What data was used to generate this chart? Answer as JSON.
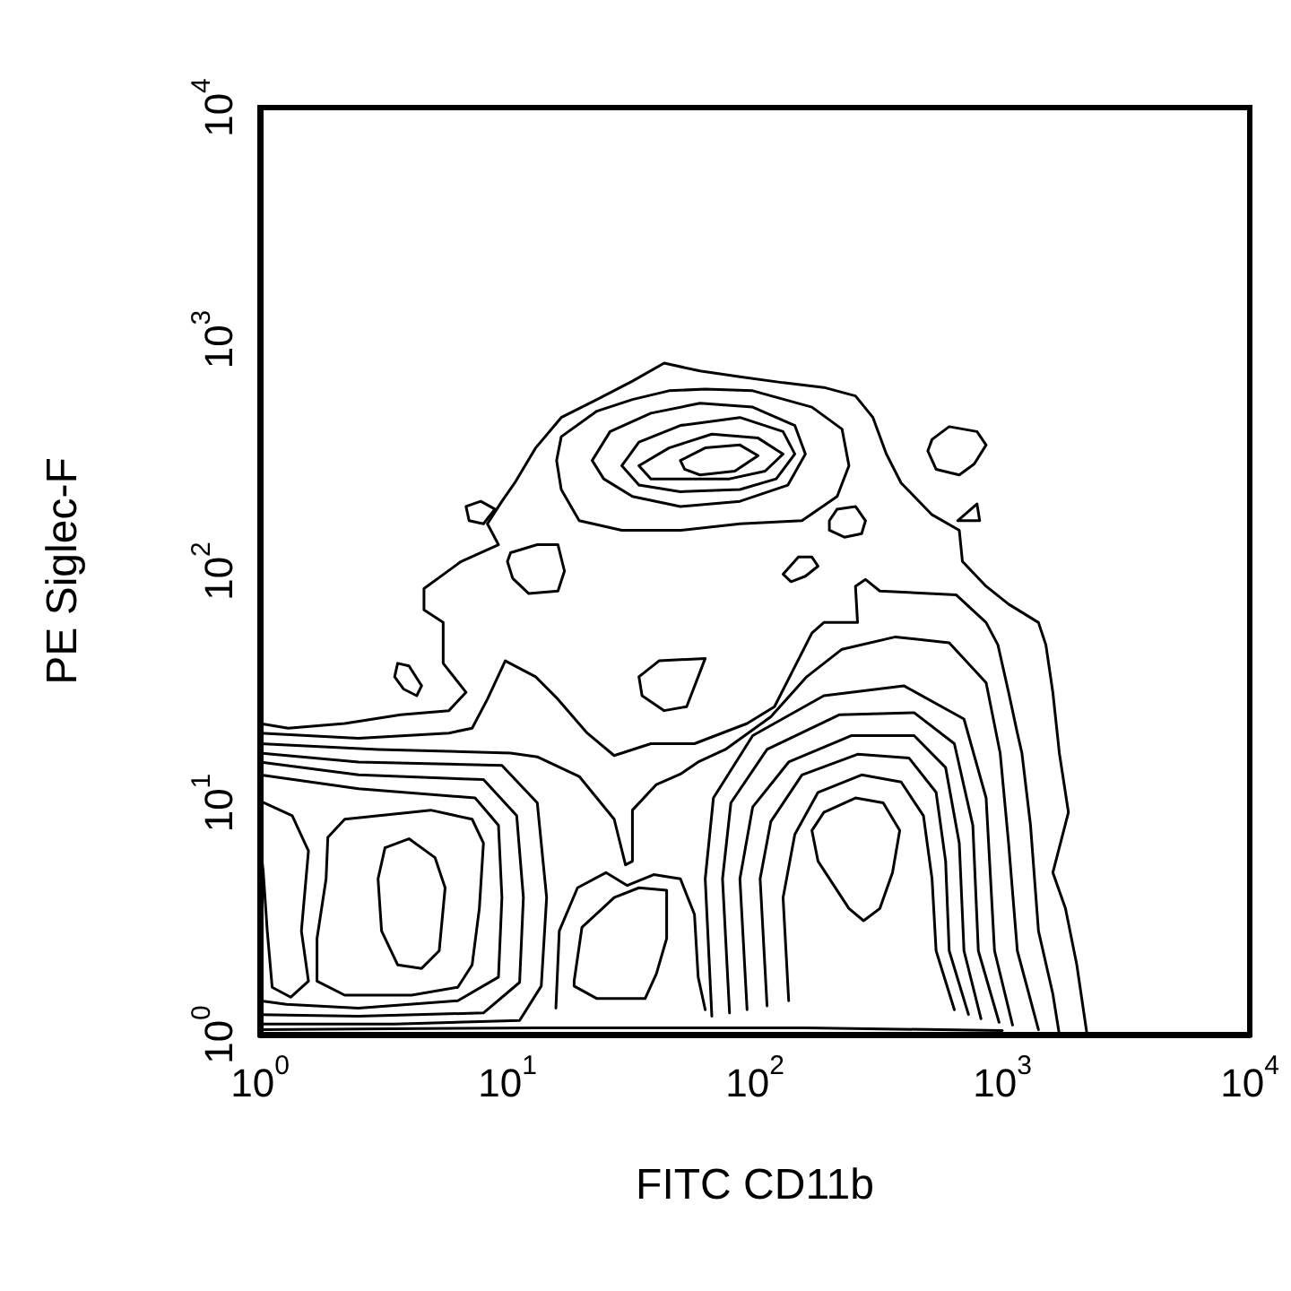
{
  "chart_data": {
    "type": "line",
    "xlabel": "FITC CD11b",
    "ylabel": "PE Siglec-F",
    "log": "xy",
    "xlim": [
      1,
      10000
    ],
    "ylim": [
      1,
      10000
    ],
    "xticks": [
      {
        "value": 1,
        "label": "10$^{0}$"
      },
      {
        "value": 10,
        "label": "10$^{1}$"
      },
      {
        "value": 100,
        "label": "10$^{2}$"
      },
      {
        "value": 1000,
        "label": "10$^{3}$"
      },
      {
        "value": 10000,
        "label": "10$^{4}$"
      }
    ],
    "yticks": [
      {
        "value": 1,
        "label": "10$^{0}$"
      },
      {
        "value": 10,
        "label": "10$^{1}$"
      },
      {
        "value": 100,
        "label": "10$^{2}$"
      },
      {
        "value": 1000,
        "label": "10$^{3}$"
      },
      {
        "value": 10000,
        "label": "10$^{4}$"
      }
    ],
    "series": [
      {
        "color": "#000000",
        "x": [
          1,
          1.3,
          2.2,
          3.7,
          5.8,
          6.8,
          5.5,
          5.5,
          4.6,
          4.6,
          6.5,
          9.2,
          8.3,
          9.5,
          10.7,
          13,
          16.5,
          23,
          32,
          43,
          60,
          87,
          130,
          190,
          255,
          300,
          340,
          390,
          520,
          670,
          690,
          860,
          1060,
          1400,
          1500,
          1600,
          1700,
          1850,
          1600,
          1800,
          2000,
          2200
        ],
        "values": [
          22,
          21,
          22,
          24,
          25,
          30,
          40,
          60,
          68,
          84,
          110,
          130,
          160,
          200,
          240,
          340,
          460,
          550,
          660,
          790,
          730,
          690,
          650,
          620,
          570,
          460,
          320,
          240,
          175,
          150,
          110,
          86,
          72,
          60,
          48,
          30,
          16.4,
          9.1,
          5.0,
          3.5,
          2.0,
          1
        ]
      },
      {
        "color": "#000000",
        "x": [
          1,
          2.5,
          5.8,
          7.2,
          8.3,
          9.8,
          13,
          16,
          21,
          27,
          38,
          57,
          93,
          120,
          170,
          190,
          260,
          255,
          280,
          320,
          650,
          860,
          960,
          1060,
          1150,
          1200,
          1300,
          1400,
          1600,
          1700
        ],
        "values": [
          20,
          19,
          20,
          21,
          28,
          41,
          35,
          28,
          20,
          16,
          18,
          18,
          22,
          26,
          54,
          60,
          60,
          86,
          92,
          82,
          79,
          60,
          48,
          30,
          20,
          16.4,
          8.0,
          2.8,
          1.5,
          1
        ]
      },
      {
        "color": "#000000",
        "x": [
          1,
          3.0,
          10.3,
          13.2,
          19.5,
          27,
          30,
          32,
          32,
          40,
          50,
          59,
          76,
          116,
          162,
          225,
          370,
          610,
          860,
          980,
          1060,
          1150,
          1400
        ],
        "values": [
          18,
          17,
          16.4,
          15.8,
          13,
          8.5,
          5.4,
          5.6,
          9.3,
          12,
          13.3,
          15,
          17,
          23.5,
          35,
          46,
          52,
          49,
          33,
          16.4,
          6.7,
          2.3,
          1.05
        ]
      },
      {
        "color": "#000000",
        "x": [
          1,
          2.5,
          9.5,
          13.2,
          14.4,
          13.7,
          11.2,
          3.5,
          1
        ],
        "values": [
          16.4,
          15,
          14.5,
          10,
          3.9,
          1.62,
          1.15,
          1.11,
          1.11
        ]
      },
      {
        "color": "#000000",
        "x": [
          1,
          2.5,
          8.0,
          10.9,
          11.6,
          11.2,
          8.0,
          2.5,
          1
        ],
        "values": [
          15,
          13.2,
          12.6,
          8.8,
          3.9,
          1.68,
          1.24,
          1.2,
          1.22
        ]
      },
      {
        "color": "#000000",
        "x": [
          1,
          2.5,
          7.4,
          9.2,
          9.5,
          9.2,
          6.3,
          2.5,
          1.28,
          1
        ],
        "values": [
          13.2,
          11.5,
          10.5,
          8.0,
          3.9,
          1.77,
          1.4,
          1.3,
          1.35,
          1.4
        ]
      },
      {
        "color": "#000000",
        "x": [
          1,
          1.35,
          1.57,
          1.47,
          1.57,
          1.33,
          1.12,
          1.07,
          1.03,
          1
        ],
        "values": [
          10.2,
          8.8,
          6.2,
          2.8,
          1.7,
          1.45,
          1.6,
          2.8,
          5.1,
          6.7
        ]
      },
      {
        "color": "#000000",
        "x": [
          1.85,
          1.88,
          2.2,
          4.9,
          7.2,
          8.0,
          7.7,
          7.2,
          6.3,
          4.1,
          2.2,
          1.7,
          1.7,
          1.85,
          1.88
        ],
        "values": [
          4.7,
          7.1,
          8.5,
          9.3,
          8.5,
          6.7,
          3.5,
          2.0,
          1.6,
          1.48,
          1.48,
          1.7,
          2.6,
          4.7,
          7.1
        ]
      },
      {
        "color": "#000000",
        "x": [
          3.0,
          3.2,
          4.0,
          5.1,
          5.6,
          5.3,
          4.5,
          3.6,
          3.1,
          3.0,
          3.2
        ],
        "values": [
          4.7,
          6.4,
          7.0,
          5.8,
          4.3,
          2.3,
          1.93,
          2.0,
          2.8,
          4.7,
          6.4
        ]
      },
      {
        "color": "#000000",
        "x": [
          18.6,
          20,
          27,
          34,
          44,
          44,
          40,
          36,
          23,
          18.6,
          18.6,
          20
        ],
        "values": [
          1.7,
          2.9,
          3.9,
          4.3,
          4.2,
          2.6,
          1.83,
          1.43,
          1.43,
          1.62,
          1.7,
          2.9
        ]
      },
      {
        "color": "#000000",
        "x": [
          15.7,
          16.2,
          19.2,
          25,
          30.5,
          39,
          50,
          57,
          59,
          63
        ],
        "values": [
          1.3,
          2.8,
          4.3,
          5.0,
          4.4,
          4.9,
          4.7,
          3.3,
          1.77,
          1.28
        ]
      },
      {
        "color": "#000000",
        "x": [
          67,
          63,
          68,
          98,
          190,
          400,
          700,
          860,
          930,
          1100
        ],
        "values": [
          1.2,
          4.7,
          10.5,
          19.5,
          29,
          32,
          23,
          10.5,
          2.3,
          1.1
        ]
      },
      {
        "color": "#000000",
        "x": [
          79,
          74,
          80,
          112,
          220,
          440,
          640,
          760,
          800,
          970
        ],
        "values": [
          1.24,
          4.7,
          10,
          17,
          24,
          24.5,
          18,
          8.0,
          2.3,
          1.13
        ]
      },
      {
        "color": "#000000",
        "x": [
          93,
          87,
          98,
          137,
          245,
          440,
          590,
          670,
          700,
          820
        ],
        "values": [
          1.28,
          4.7,
          9.6,
          15,
          19.5,
          19.5,
          14.2,
          6.7,
          2.3,
          1.17
        ]
      },
      {
        "color": "#000000",
        "x": [
          112,
          105,
          116,
          155,
          260,
          420,
          540,
          590,
          610,
          730
        ],
        "values": [
          1.33,
          4.7,
          8.3,
          13.2,
          16.2,
          15.6,
          11.1,
          5.6,
          2.3,
          1.22
        ]
      },
      {
        "color": "#000000",
        "x": [
          137,
          130,
          145,
          180,
          270,
          390,
          480,
          520,
          540,
          640
        ],
        "values": [
          1.4,
          3.9,
          7.3,
          11.1,
          13.2,
          12.3,
          8.8,
          4.7,
          2.3,
          1.28
        ]
      },
      {
        "color": "#000000",
        "x": [
          170,
          190,
          255,
          330,
          385,
          360,
          320,
          275,
          240,
          180,
          170,
          190
        ],
        "values": [
          7.6,
          9.1,
          10.5,
          10,
          7.6,
          5.0,
          3.5,
          3.1,
          3.5,
          5.6,
          7.6,
          9.1
        ]
      },
      {
        "color": "#000000",
        "x": [
          16.5,
          15.8,
          16.5,
          23,
          32,
          45,
          63,
          98,
          170,
          225,
          240,
          215,
          155,
          87,
          50,
          29,
          19.5,
          16.5,
          15.8
        ],
        "values": [
          225,
          300,
          380,
          490,
          550,
          600,
          610,
          600,
          510,
          410,
          285,
          210,
          165,
          160,
          150,
          150,
          165,
          225,
          300
        ]
      },
      {
        "color": "#000000",
        "x": [
          24.5,
          22,
          26,
          38,
          60,
          98,
          145,
          160,
          136,
          87,
          50,
          32,
          24.5,
          22
        ],
        "values": [
          250,
          300,
          400,
          480,
          530,
          510,
          425,
          320,
          235,
          200,
          190,
          210,
          250,
          300
        ]
      },
      {
        "color": "#000000",
        "x": [
          34,
          29,
          34,
          50,
          87,
          130,
          145,
          122,
          87,
          50,
          34,
          29
        ],
        "values": [
          235,
          285,
          360,
          425,
          460,
          400,
          320,
          250,
          225,
          220,
          235,
          285
        ]
      },
      {
        "color": "#000000",
        "x": [
          38,
          34,
          45,
          67,
          103,
          130,
          110,
          79,
          50,
          38,
          34
        ],
        "values": [
          250,
          285,
          340,
          390,
          375,
          320,
          270,
          250,
          250,
          250,
          285
        ]
      },
      {
        "color": "#000000",
        "x": [
          52,
          50,
          63,
          87,
          103,
          83,
          60,
          52,
          50
        ],
        "values": [
          275,
          300,
          340,
          350,
          315,
          270,
          260,
          275,
          300
        ]
      },
      {
        "color": "#000000",
        "x": [
          500,
          520,
          610,
          790,
          860,
          770,
          670,
          540,
          500,
          520
        ],
        "values": [
          330,
          370,
          420,
          400,
          350,
          290,
          260,
          275,
          330,
          370
        ]
      },
      {
        "color": "#000000",
        "x": [
          200,
          215,
          255,
          280,
          270,
          230,
          200,
          200,
          215
        ],
        "values": [
          165,
          185,
          190,
          165,
          145,
          140,
          150,
          165,
          185
        ]
      },
      {
        "color": "#000000",
        "x": [
          130,
          150,
          170,
          180,
          160,
          140,
          130,
          150
        ],
        "values": [
          97,
          115,
          115,
          105,
          95,
          90,
          97,
          115
        ]
      },
      {
        "color": "#000000",
        "x": [
          660,
          790,
          810,
          660,
          790
        ],
        "values": [
          165,
          195,
          165,
          165,
          195
        ]
      },
      {
        "color": "#000000",
        "x": [
          34,
          41,
          63,
          59,
          53,
          43,
          35,
          34,
          41
        ],
        "values": [
          35,
          41,
          42,
          35,
          26,
          25,
          29,
          35,
          41
        ]
      },
      {
        "color": "#000000",
        "x": [
          3.6,
          4.0,
          4.5,
          4.3,
          3.8,
          3.5,
          3.6,
          4.0
        ],
        "values": [
          40,
          39,
          32,
          29,
          31,
          35,
          40,
          39
        ]
      },
      {
        "color": "#000000",
        "x": [
          6.8,
          7.8,
          8.9,
          8.0,
          7.0,
          6.8,
          7.8
        ],
        "values": [
          190,
          200,
          185,
          160,
          165,
          190,
          200
        ]
      },
      {
        "color": "#000000",
        "x": [
          10.3,
          13.2,
          16,
          17,
          16,
          12.2,
          10.5,
          10,
          10.3,
          13.2
        ],
        "values": [
          120,
          130,
          130,
          100,
          82,
          80,
          93,
          110,
          120,
          130
        ]
      },
      {
        "color": "#000000",
        "x": [
          1,
          13.2,
          162,
          1000
        ],
        "values": [
          1.05,
          1.07,
          1.07,
          1.04
        ]
      }
    ]
  }
}
